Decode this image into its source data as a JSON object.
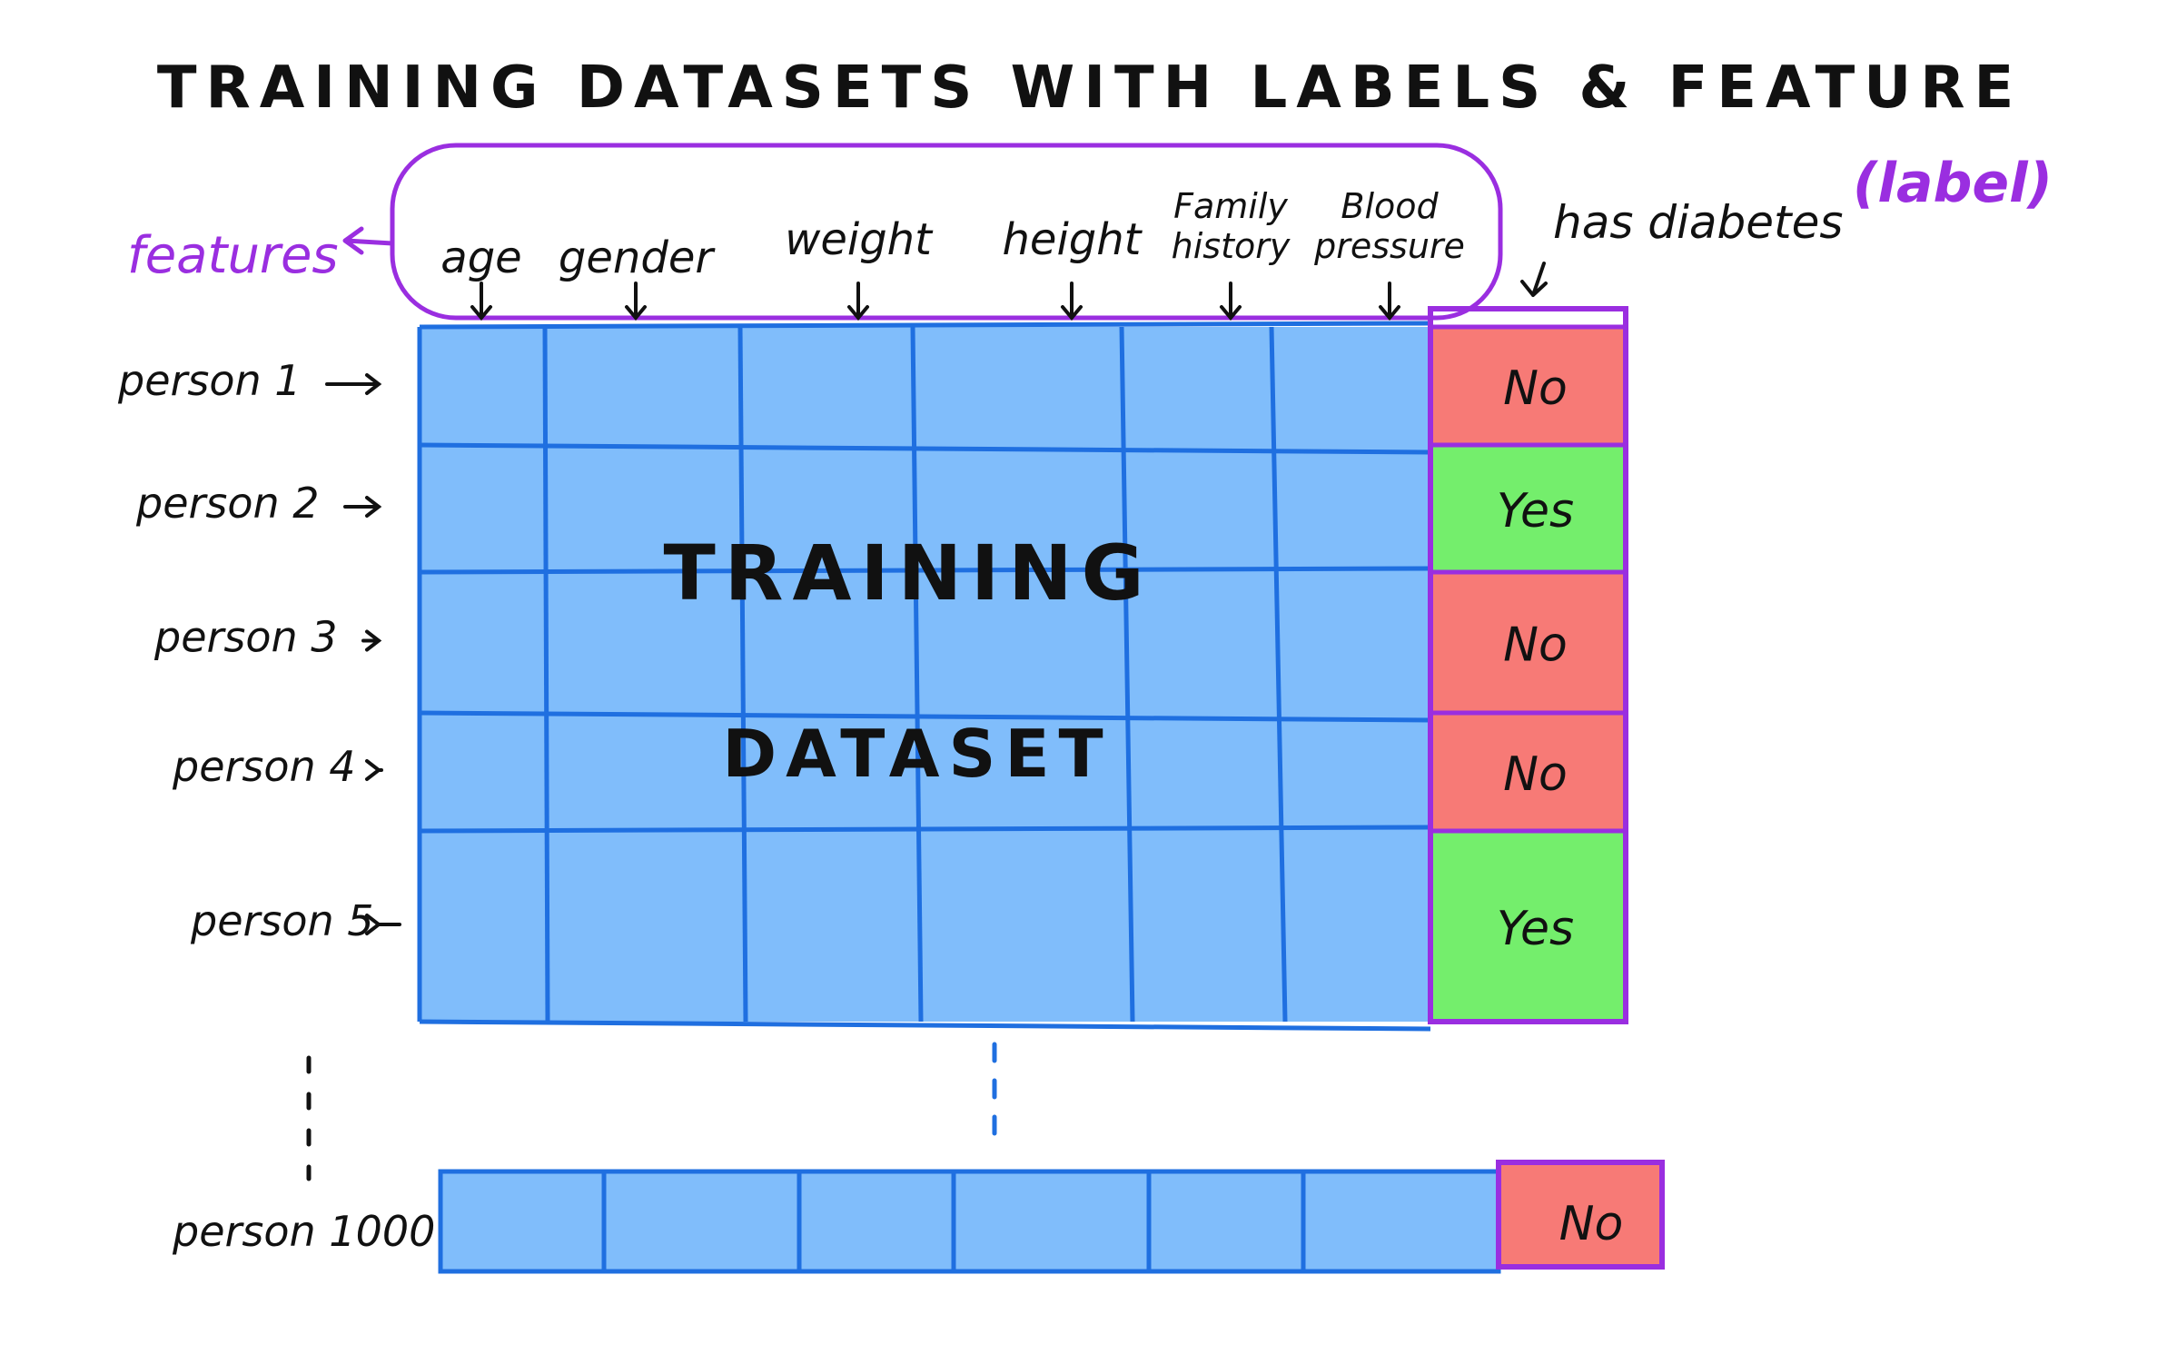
{
  "title": "TRAINING DATASETS WITH LABELS & FEATURE",
  "features_label": "features",
  "label_header": "has diabetes",
  "label_tag": "(label)",
  "features": [
    "age",
    "gender",
    "weight",
    "height",
    "Family history",
    "Blood pressure"
  ],
  "rows": [
    {
      "name": "person 1",
      "label": "No"
    },
    {
      "name": "person 2",
      "label": "Yes"
    },
    {
      "name": "person 3",
      "label": "No"
    },
    {
      "name": "person 4",
      "label": "No"
    },
    {
      "name": "person 5",
      "label": "Yes"
    }
  ],
  "last_row": {
    "name": "person 1000",
    "label": "No"
  },
  "center_text": [
    "TRAINING",
    "DATASET"
  ],
  "colors": {
    "grid_fill": "#80bdfb",
    "grid_line": "#1f6fe0",
    "purple": "#9a2ee0",
    "no": "#f77a76",
    "yes": "#74ee6c",
    "ink": "#111111"
  }
}
